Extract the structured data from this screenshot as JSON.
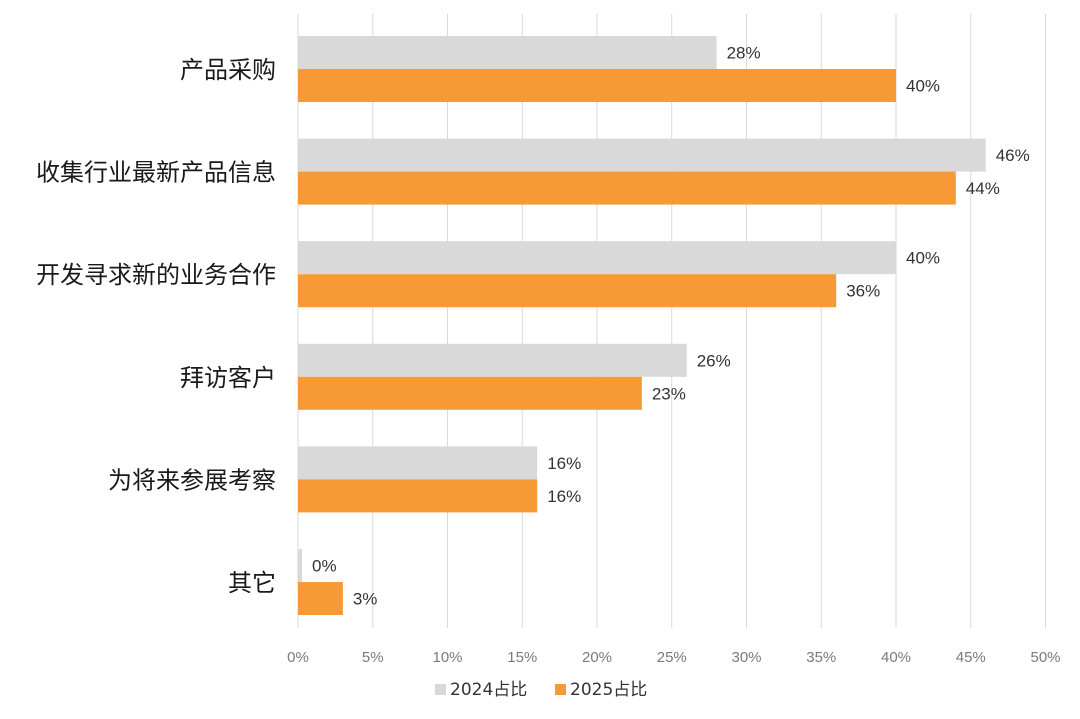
{
  "chart_data": {
    "type": "bar",
    "orientation": "horizontal",
    "categories": [
      "产品采购",
      "收集行业最新产品信息",
      "开发寻求新的业务合作",
      "拜访客户",
      "为将来参展考察",
      "其它"
    ],
    "series": [
      {
        "name": "2024占比",
        "color": "#d9d9d9",
        "values": [
          28,
          46,
          40,
          26,
          16,
          0
        ],
        "value_labels": [
          "28%",
          "46%",
          "40%",
          "26%",
          "16%",
          "0%"
        ]
      },
      {
        "name": "2025占比",
        "color": "#f79a35",
        "values": [
          40,
          44,
          36,
          23,
          16,
          3
        ],
        "value_labels": [
          "40%",
          "44%",
          "36%",
          "23%",
          "16%",
          "3%"
        ]
      }
    ],
    "x_ticks": [
      "0%",
      "5%",
      "10%",
      "15%",
      "20%",
      "25%",
      "30%",
      "35%",
      "40%",
      "45%",
      "50%"
    ],
    "xlim": [
      0,
      50
    ],
    "title": "",
    "xlabel": "",
    "ylabel": "",
    "grid": "vertical",
    "legend_position": "bottom"
  }
}
